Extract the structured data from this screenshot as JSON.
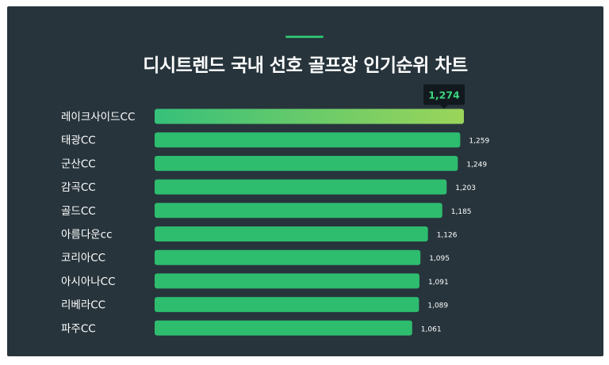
{
  "chart_data": {
    "type": "bar",
    "orientation": "horizontal",
    "title": "디시트렌드 국내 선호 골프장 인기순위 차트",
    "categories": [
      "레이크사이드CC",
      "태광CC",
      "군산CC",
      "감곡CC",
      "골드CC",
      "아름다운cc",
      "코리아CC",
      "아시아나CC",
      "리베라CC",
      "파주CC"
    ],
    "values": [
      1274,
      1259,
      1249,
      1203,
      1185,
      1126,
      1095,
      1091,
      1089,
      1061
    ],
    "value_labels": [
      "1,274",
      "1,259",
      "1,249",
      "1,203",
      "1,185",
      "1,126",
      "1,095",
      "1,091",
      "1,089",
      "1,061"
    ],
    "xlim": [
      0,
      1274
    ],
    "grid": false,
    "highlight_index": 0,
    "colors": {
      "bar": "#2ebc6e",
      "bar_top_start": "#36c07a",
      "bar_top_end": "#9bd55a",
      "background": "#27343c",
      "label_text": "#ffffff",
      "value_text": "#ffffff",
      "callout_bg": "#12191e",
      "callout_text": "#3cd67e"
    }
  }
}
